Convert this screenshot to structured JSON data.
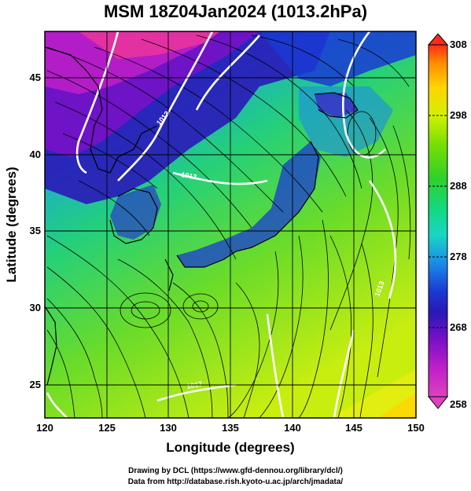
{
  "title": "MSM 18Z04Jan2024 (1013.2hPa)",
  "map": {
    "xlabel": "Longitude (degrees)",
    "ylabel": "Latitude  (degrees)",
    "lon_range": [
      120,
      150
    ],
    "lat_range": [
      23,
      48
    ],
    "lon_ticks": [
      120,
      125,
      130,
      135,
      140,
      145,
      150
    ],
    "lat_ticks": [
      25,
      30,
      35,
      40,
      45
    ],
    "variable": "potential temperature (K) shading with streamlines and white contours",
    "contours": [
      "1013",
      "1013",
      "1013",
      "1017"
    ],
    "colorbar": {
      "min": 258,
      "max": 308,
      "labels": [
        308,
        298,
        288,
        278,
        268,
        258
      ],
      "colors": [
        "#ff2a18",
        "#ff8a00",
        "#ffd400",
        "#d4f000",
        "#7ae000",
        "#2fd02a",
        "#14d87a",
        "#18d6c4",
        "#1a8ce8",
        "#1a3ad4",
        "#2a18b8",
        "#7a10c8",
        "#c020c8",
        "#e040c0"
      ]
    }
  },
  "credits": {
    "line1": "Drawing by DCL (https://www.gfd-dennou.org/library/dcl/)",
    "line2": "Data from http://database.rish.kyoto-u.ac.jp/arch/jmadata/"
  }
}
